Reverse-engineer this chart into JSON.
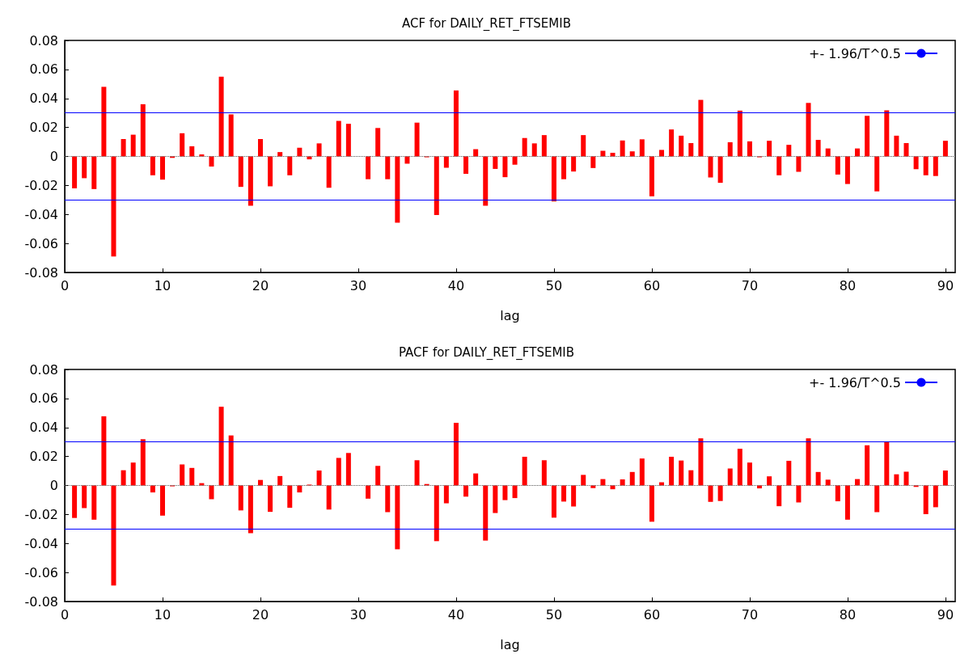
{
  "chart_data": [
    {
      "type": "bar",
      "title": "ACF for DAILY_RET_FTSEMIB",
      "xlabel": "lag",
      "x": [
        1,
        2,
        3,
        4,
        5,
        6,
        7,
        8,
        9,
        10,
        11,
        12,
        13,
        14,
        15,
        16,
        17,
        18,
        19,
        20,
        21,
        22,
        23,
        24,
        25,
        26,
        27,
        28,
        29,
        30,
        31,
        32,
        33,
        34,
        35,
        36,
        37,
        38,
        39,
        40,
        41,
        42,
        43,
        44,
        45,
        46,
        47,
        48,
        49,
        50,
        51,
        52,
        53,
        54,
        55,
        56,
        57,
        58,
        59,
        60,
        61,
        62,
        63,
        64,
        65,
        66,
        67,
        68,
        69,
        70,
        71,
        72,
        73,
        74,
        75,
        76,
        77,
        78,
        79,
        80,
        81,
        82,
        83,
        84,
        85,
        86,
        87,
        88,
        89,
        90
      ],
      "series": [
        {
          "color": "#ff0000",
          "values": [
            -0.022,
            -0.015,
            -0.0225,
            0.048,
            -0.069,
            0.012,
            0.015,
            0.036,
            -0.013,
            -0.016,
            -0.001,
            0.016,
            0.007,
            0.0014,
            -0.007,
            0.055,
            0.029,
            -0.021,
            -0.034,
            0.012,
            -0.0206,
            0.003,
            -0.013,
            0.006,
            -0.002,
            0.009,
            -0.0216,
            0.0245,
            0.0225,
            0,
            -0.0157,
            0.0196,
            -0.0157,
            -0.0457,
            -0.005,
            0.0233,
            -0.0006,
            -0.0404,
            -0.0078,
            0.0455,
            -0.012,
            0.005,
            -0.034,
            -0.0086,
            -0.0143,
            -0.0057,
            0.0127,
            0.009,
            0.0147,
            -0.031,
            -0.0157,
            -0.0104,
            0.0147,
            -0.008,
            0.0039,
            0.0025,
            0.011,
            0.0035,
            0.0118,
            -0.0275,
            0.0045,
            0.0186,
            0.0143,
            0.0092,
            0.039,
            -0.0145,
            -0.0182,
            0.0098,
            0.0316,
            0.0104,
            -0.0006,
            0.0108,
            -0.013,
            0.008,
            -0.0106,
            0.0369,
            0.0114,
            0.0055,
            -0.0125,
            -0.019,
            0.0055,
            0.028,
            -0.0241,
            0.0318,
            0.0143,
            0.0092,
            -0.0088,
            -0.013,
            -0.0135,
            0.0108
          ]
        }
      ],
      "xlim": [
        0,
        91
      ],
      "xticks": [
        0,
        10,
        20,
        30,
        40,
        50,
        60,
        70,
        80,
        90
      ],
      "ylim": [
        -0.08,
        0.08
      ],
      "yticks": [
        -0.08,
        -0.06,
        -0.04,
        -0.02,
        0,
        0.02,
        0.04,
        0.06,
        0.08
      ],
      "grid": false,
      "legend": "top right",
      "ref_lines": [
        {
          "axis": "y",
          "value": 0.03,
          "label": "+- 1.96/T^0.5",
          "color": "#0000ff",
          "line_style": "solid"
        },
        {
          "axis": "y",
          "value": -0.03,
          "label": null,
          "color": "#0000ff",
          "line_style": "solid"
        },
        {
          "axis": "y",
          "value": 0,
          "label": null,
          "color": "#555555",
          "line_style": "dotted"
        }
      ]
    },
    {
      "type": "bar",
      "title": "PACF for DAILY_RET_FTSEMIB",
      "xlabel": "lag",
      "x": [
        1,
        2,
        3,
        4,
        5,
        6,
        7,
        8,
        9,
        10,
        11,
        12,
        13,
        14,
        15,
        16,
        17,
        18,
        19,
        20,
        21,
        22,
        23,
        24,
        25,
        26,
        27,
        28,
        29,
        30,
        31,
        32,
        33,
        34,
        35,
        36,
        37,
        38,
        39,
        40,
        41,
        42,
        43,
        44,
        45,
        46,
        47,
        48,
        49,
        50,
        51,
        52,
        53,
        54,
        55,
        56,
        57,
        58,
        59,
        60,
        61,
        62,
        63,
        64,
        65,
        66,
        67,
        68,
        69,
        70,
        71,
        72,
        73,
        74,
        75,
        76,
        77,
        78,
        79,
        80,
        81,
        82,
        83,
        84,
        85,
        86,
        87,
        88,
        89,
        90
      ],
      "series": [
        {
          "color": "#ff0000",
          "values": [
            -0.0224,
            -0.0156,
            -0.0236,
            0.0477,
            -0.069,
            0.0105,
            0.0158,
            0.0319,
            -0.0048,
            -0.0208,
            -0.0006,
            0.0145,
            0.0121,
            0.0016,
            -0.0095,
            0.0543,
            0.0345,
            -0.0172,
            -0.0329,
            0.0038,
            -0.0182,
            0.0065,
            -0.0154,
            -0.0048,
            0.0006,
            0.0103,
            -0.0166,
            0.019,
            0.0224,
            0,
            -0.0091,
            0.0135,
            -0.0184,
            -0.044,
            0,
            0.0174,
            0.001,
            -0.0384,
            -0.0123,
            0.0432,
            -0.0077,
            0.0083,
            -0.038,
            -0.019,
            -0.0101,
            -0.0087,
            0.0198,
            0,
            0.0174,
            -0.0222,
            -0.0111,
            -0.0145,
            0.0073,
            -0.0018,
            0.0044,
            -0.0026,
            0.0042,
            0.0093,
            0.0186,
            -0.025,
            0.0022,
            0.0198,
            0.0172,
            0.0105,
            0.0325,
            -0.0113,
            -0.0107,
            0.0117,
            0.0253,
            0.0158,
            -0.002,
            0.0063,
            -0.0143,
            0.017,
            -0.0117,
            0.0325,
            0.0093,
            0.004,
            -0.0109,
            -0.0236,
            0.0044,
            0.0277,
            -0.0184,
            0.0301,
            0.0077,
            0.0095,
            -0.001,
            -0.0198,
            -0.015,
            0.0103
          ]
        }
      ],
      "xlim": [
        0,
        91
      ],
      "xticks": [
        0,
        10,
        20,
        30,
        40,
        50,
        60,
        70,
        80,
        90
      ],
      "ylim": [
        -0.08,
        0.08
      ],
      "yticks": [
        -0.08,
        -0.06,
        -0.04,
        -0.02,
        0,
        0.02,
        0.04,
        0.06,
        0.08
      ],
      "grid": false,
      "legend": "top right",
      "ref_lines": [
        {
          "axis": "y",
          "value": 0.0295,
          "label": "+- 1.96/T^0.5",
          "color": "#0000ff",
          "line_style": "solid"
        },
        {
          "axis": "y",
          "value": -0.0295,
          "label": null,
          "color": "#0000ff",
          "line_style": "solid"
        },
        {
          "axis": "y",
          "value": 0,
          "label": null,
          "color": "#555555",
          "line_style": "dotted"
        }
      ]
    }
  ]
}
